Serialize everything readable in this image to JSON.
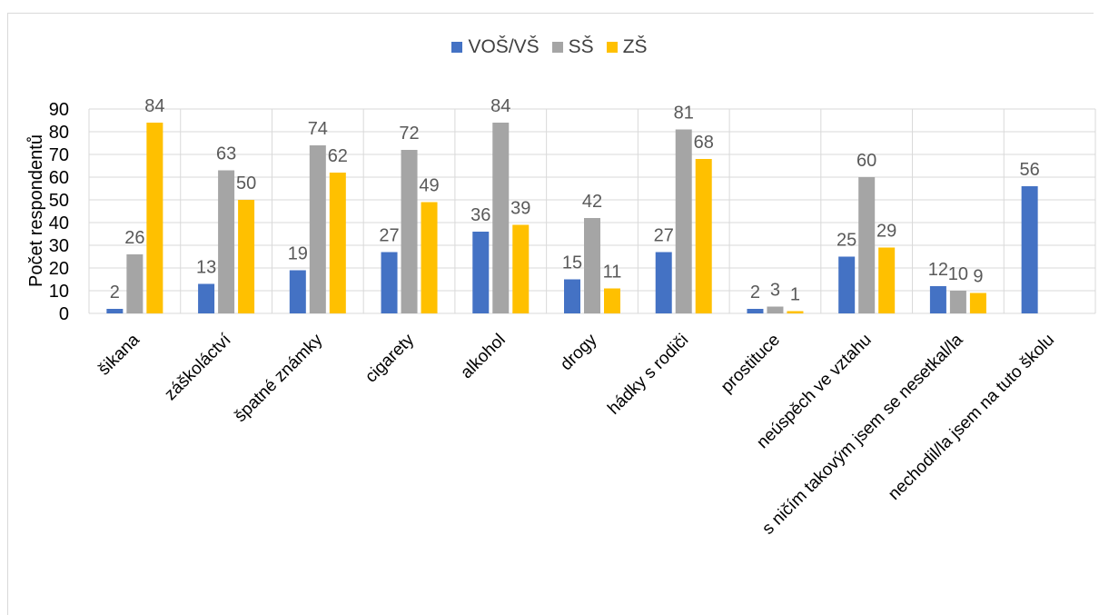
{
  "chart_data": {
    "type": "bar",
    "ylabel": "Počet respondentů",
    "ylim": [
      0,
      90
    ],
    "yticks": [
      0,
      10,
      20,
      30,
      40,
      50,
      60,
      70,
      80,
      90
    ],
    "grid": true,
    "legend_position": "top",
    "categories": [
      "šikana",
      "záškoláctví",
      "špatné známky",
      "cigarety",
      "alkohol",
      "drogy",
      "hádky s rodiči",
      "prostituce",
      "neúspěch ve vztahu",
      "s ničím takovým jsem se nesetkal/la",
      "nechodil/la jsem na tuto školu"
    ],
    "series": [
      {
        "name": "VOŠ/VŠ",
        "color": "#4472c4",
        "values": [
          2,
          13,
          19,
          27,
          36,
          15,
          27,
          2,
          25,
          12,
          56
        ]
      },
      {
        "name": "SŠ",
        "color": "#a5a5a5",
        "values": [
          26,
          63,
          74,
          72,
          84,
          42,
          81,
          3,
          60,
          10,
          null
        ]
      },
      {
        "name": "ZŠ",
        "color": "#ffc000",
        "values": [
          84,
          50,
          62,
          49,
          39,
          11,
          68,
          1,
          29,
          9,
          null
        ]
      }
    ]
  }
}
